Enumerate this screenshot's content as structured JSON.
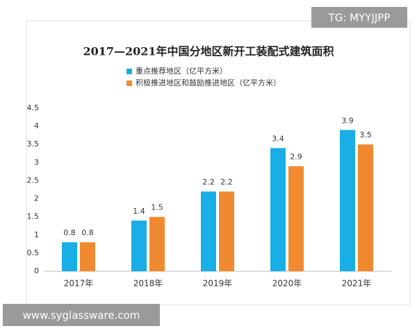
{
  "chart_data": {
    "type": "bar",
    "title": "2017—2021年中国分地区新开工装配式建筑面积",
    "annotations": [
      "TG: MYYJJPP",
      "www.syglassware.com"
    ],
    "categories": [
      "2017年",
      "2018年",
      "2019年",
      "2020年",
      "2021年"
    ],
    "series": [
      {
        "name": "重点推荐地区（亿平方米）",
        "color": "#1aaee6",
        "values": [
          0.8,
          1.4,
          2.2,
          3.4,
          3.9
        ]
      },
      {
        "name": "积极推进地区和鼓励推进地区（亿平方米）",
        "color": "#f08a30",
        "values": [
          0.8,
          1.5,
          2.2,
          2.9,
          3.5
        ]
      }
    ],
    "ylim": [
      0,
      4.5
    ],
    "yticks": [
      0,
      0.5,
      1,
      1.5,
      2,
      2.5,
      3,
      3.5,
      4,
      4.5
    ],
    "grid": false,
    "legend": "top"
  }
}
